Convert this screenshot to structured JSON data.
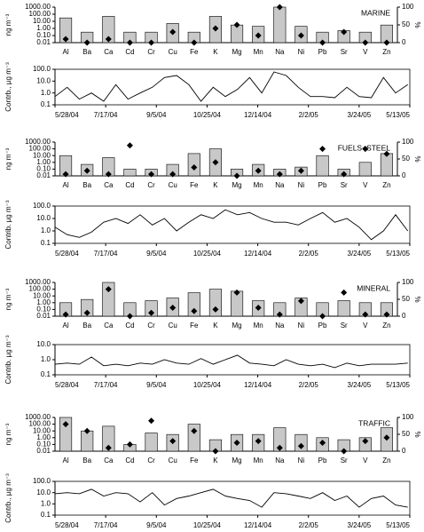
{
  "chart_data": [
    {
      "type": "bar",
      "annotation": "MARINE",
      "ylabel": "ng m⁻³",
      "y2label": "%",
      "categories": [
        "Al",
        "Ba",
        "Ca",
        "Cd",
        "Cr",
        "Cu",
        "Fe",
        "K",
        "Mg",
        "Mn",
        "Na",
        "Ni",
        "Pb",
        "Sr",
        "V",
        "Zn"
      ],
      "ylog": true,
      "ylim": [
        0.01,
        1000
      ],
      "yticks": [
        {
          "value": 0.01,
          "label": "0.01"
        },
        {
          "value": 0.1,
          "label": "0.10"
        },
        {
          "value": 1,
          "label": "1.00"
        },
        {
          "value": 10,
          "label": "10.00"
        },
        {
          "value": 100,
          "label": "100.00"
        },
        {
          "value": 1000,
          "label": "1000.00"
        }
      ],
      "y2lim": [
        0,
        100
      ],
      "y2ticks": [
        0,
        50,
        100
      ],
      "series": [
        {
          "type": "bar",
          "color": "#c8c8c8",
          "values": [
            30,
            0.3,
            50,
            0.3,
            0.3,
            5,
            0.3,
            50,
            3,
            2,
            1000,
            2,
            0.3,
            0.5,
            0.3,
            3
          ]
        },
        {
          "type": "scatter",
          "axis": "y2",
          "color": "#000000",
          "values": [
            10,
            0,
            10,
            0,
            0,
            30,
            0,
            40,
            50,
            20,
            100,
            20,
            0,
            30,
            0,
            0
          ]
        }
      ]
    },
    {
      "type": "line",
      "ylabel": "Contrb., µg m⁻³",
      "x": [
        "5/28/04",
        "6/9/04",
        "6/21/04",
        "7/3/04",
        "7/15/04",
        "7/27/04",
        "8/8/04",
        "8/20/04",
        "9/1/04",
        "9/13/04",
        "9/25/04",
        "10/7/04",
        "10/19/04",
        "10/31/04",
        "11/12/04",
        "11/24/04",
        "12/6/04",
        "12/18/04",
        "12/30/04",
        "1/11/05",
        "1/23/05",
        "2/4/05",
        "2/16/05",
        "2/28/05",
        "3/12/05",
        "3/24/05",
        "4/5/05",
        "4/17/05",
        "4/29/05",
        "5/11/05"
      ],
      "xlim": [
        "5/28/04",
        "5/13/05"
      ],
      "xticks": [
        "5/28/04",
        "7/17/04",
        "9/5/04",
        "10/25/04",
        "12/14/04",
        "2/2/05",
        "3/24/05",
        "5/13/05"
      ],
      "ylog": true,
      "ylim": [
        0.1,
        100
      ],
      "yticks": [
        {
          "value": 0.1,
          "label": "0.1"
        },
        {
          "value": 1,
          "label": "1.0"
        },
        {
          "value": 10,
          "label": "10.0"
        },
        {
          "value": 100,
          "label": "100.0"
        }
      ],
      "color": "#000000",
      "values": [
        0.5,
        3,
        0.3,
        1,
        0.2,
        5,
        0.3,
        1,
        3,
        20,
        30,
        5,
        0.2,
        3,
        0.5,
        2,
        20,
        1,
        60,
        30,
        3,
        0.5,
        0.5,
        0.4,
        3,
        0.5,
        0.4,
        20,
        1,
        5
      ]
    },
    {
      "type": "bar",
      "annotation": "FUELS+STEEL",
      "ylabel": "ng m⁻³",
      "y2label": "%",
      "categories": [
        "Al",
        "Ba",
        "Ca",
        "Cd",
        "Cr",
        "Cu",
        "Fe",
        "K",
        "Mg",
        "Mn",
        "Na",
        "Ni",
        "Pb",
        "Sr",
        "V",
        "Zn"
      ],
      "ylog": true,
      "ylim": [
        0.01,
        1000
      ],
      "yticks": [
        {
          "value": 0.01,
          "label": "0.01"
        },
        {
          "value": 0.1,
          "label": "0.10"
        },
        {
          "value": 1,
          "label": "1.00"
        },
        {
          "value": 10,
          "label": "10.00"
        },
        {
          "value": 100,
          "label": "100.00"
        },
        {
          "value": 1000,
          "label": "1000.00"
        }
      ],
      "y2lim": [
        0,
        100
      ],
      "y2ticks": [
        0,
        50,
        100
      ],
      "series": [
        {
          "type": "bar",
          "color": "#c8c8c8",
          "values": [
            10,
            0.5,
            5,
            0.1,
            0.1,
            0.5,
            20,
            100,
            0.1,
            0.5,
            0.1,
            0.2,
            10,
            0.1,
            1,
            20
          ]
        },
        {
          "type": "scatter",
          "axis": "y2",
          "color": "#000000",
          "values": [
            5,
            15,
            5,
            90,
            5,
            5,
            25,
            40,
            0,
            15,
            5,
            15,
            80,
            5,
            80,
            65
          ]
        }
      ]
    },
    {
      "type": "line",
      "ylabel": "Contrib. µg m⁻³",
      "x": [
        "5/28/04",
        "6/9/04",
        "6/21/04",
        "7/3/04",
        "7/15/04",
        "7/27/04",
        "8/8/04",
        "8/20/04",
        "9/1/04",
        "9/13/04",
        "9/25/04",
        "10/7/04",
        "10/19/04",
        "10/31/04",
        "11/12/04",
        "11/24/04",
        "12/6/04",
        "12/18/04",
        "12/30/04",
        "1/11/05",
        "1/23/05",
        "2/4/05",
        "2/16/05",
        "2/28/05",
        "3/12/05",
        "3/24/05",
        "4/5/05",
        "4/17/05",
        "4/29/05",
        "5/11/05"
      ],
      "xlim": [
        "5/28/04",
        "5/13/05"
      ],
      "xticks": [
        "5/28/04",
        "7/17/04",
        "9/5/04",
        "10/25/04",
        "12/14/04",
        "2/2/05",
        "3/24/05",
        "5/13/05"
      ],
      "ylog": true,
      "ylim": [
        0.1,
        100
      ],
      "yticks": [
        {
          "value": 0.1,
          "label": "0.1"
        },
        {
          "value": 1,
          "label": "1.0"
        },
        {
          "value": 10,
          "label": "10.0"
        },
        {
          "value": 100,
          "label": "100.0"
        }
      ],
      "color": "#000000",
      "values": [
        2,
        0.5,
        0.3,
        0.8,
        5,
        10,
        4,
        20,
        3,
        10,
        1,
        5,
        20,
        10,
        50,
        20,
        30,
        10,
        5,
        5,
        3,
        10,
        30,
        5,
        10,
        2,
        0.2,
        1,
        20,
        1
      ]
    },
    {
      "type": "bar",
      "annotation": "MINERAL",
      "ylabel": "ng m⁻³",
      "y2label": "%",
      "categories": [
        "Al",
        "Ba",
        "Ca",
        "Cd",
        "Cr",
        "Cu",
        "Fe",
        "K",
        "Mg",
        "Mn",
        "Na",
        "Ni",
        "Pb",
        "Sr",
        "V",
        "Zn"
      ],
      "ylog": true,
      "ylim": [
        0.01,
        1000
      ],
      "yticks": [
        {
          "value": 0.01,
          "label": "0.01"
        },
        {
          "value": 0.1,
          "label": "0.10"
        },
        {
          "value": 1,
          "label": "1.00"
        },
        {
          "value": 10,
          "label": "10.00"
        },
        {
          "value": 100,
          "label": "100.00"
        },
        {
          "value": 1000,
          "label": "1000.00"
        }
      ],
      "y2lim": [
        0,
        100
      ],
      "y2ticks": [
        0,
        50,
        100
      ],
      "series": [
        {
          "type": "bar",
          "color": "#c8c8c8",
          "values": [
            1,
            3,
            1000,
            1,
            2,
            5,
            30,
            100,
            50,
            2,
            1,
            5,
            1,
            2,
            1,
            1
          ]
        },
        {
          "type": "scatter",
          "axis": "y2",
          "color": "#000000",
          "values": [
            5,
            10,
            80,
            0,
            10,
            25,
            15,
            20,
            70,
            25,
            5,
            45,
            0,
            70,
            5,
            5
          ]
        }
      ]
    },
    {
      "type": "line",
      "ylabel": "Contrib. µg m⁻³",
      "x": [
        "5/28/04",
        "6/9/04",
        "6/21/04",
        "7/3/04",
        "7/15/04",
        "7/27/04",
        "8/8/04",
        "8/20/04",
        "9/1/04",
        "9/13/04",
        "9/25/04",
        "10/7/04",
        "10/19/04",
        "10/31/04",
        "11/12/04",
        "11/24/04",
        "12/6/04",
        "12/18/04",
        "12/30/04",
        "1/11/05",
        "1/23/05",
        "2/4/05",
        "2/16/05",
        "2/28/05",
        "3/12/05",
        "3/24/05",
        "4/5/05",
        "4/17/05",
        "4/29/05",
        "5/11/05"
      ],
      "xlim": [
        "5/28/04",
        "5/13/05"
      ],
      "xticks": [
        "5/28/04",
        "7/17/04",
        "9/5/04",
        "10/25/04",
        "12/14/04",
        "2/2/05",
        "3/24/05",
        "5/13/05"
      ],
      "ylog": true,
      "ylim": [
        0.1,
        10
      ],
      "yticks": [
        {
          "value": 0.1,
          "label": "0.1"
        },
        {
          "value": 1,
          "label": "1.0"
        },
        {
          "value": 10,
          "label": "10.0"
        }
      ],
      "color": "#000000",
      "values": [
        0.5,
        0.6,
        0.5,
        1.5,
        0.4,
        0.5,
        0.4,
        0.6,
        0.5,
        1,
        0.6,
        0.5,
        1.2,
        0.5,
        1,
        2,
        0.6,
        0.5,
        0.4,
        1,
        0.5,
        0.4,
        0.5,
        0.3,
        0.6,
        0.4,
        0.5,
        0.5,
        0.5,
        0.6
      ]
    },
    {
      "type": "bar",
      "annotation": "TRAFFIC",
      "ylabel": "ng m⁻³",
      "y2label": "%",
      "categories": [
        "Al",
        "Ba",
        "Ca",
        "Cd",
        "Cr",
        "Cu",
        "Fe",
        "K",
        "Mg",
        "Mn",
        "Na",
        "Ni",
        "Pb",
        "Sr",
        "V",
        "Zn"
      ],
      "ylog": true,
      "ylim": [
        0.01,
        1000
      ],
      "yticks": [
        {
          "value": 0.01,
          "label": "0.01"
        },
        {
          "value": 0.1,
          "label": "0.10"
        },
        {
          "value": 1,
          "label": "1.00"
        },
        {
          "value": 10,
          "label": "10.00"
        },
        {
          "value": 100,
          "label": "100.00"
        },
        {
          "value": 1000,
          "label": "1000.00"
        }
      ],
      "y2lim": [
        0,
        100
      ],
      "y2ticks": [
        0,
        50,
        100
      ],
      "series": [
        {
          "type": "bar",
          "color": "#c8c8c8",
          "values": [
            1000,
            10,
            50,
            0.1,
            5,
            3,
            100,
            0.5,
            3,
            3,
            30,
            3,
            1,
            0.5,
            1,
            30
          ]
        },
        {
          "type": "scatter",
          "axis": "y2",
          "color": "#000000",
          "values": [
            80,
            60,
            10,
            20,
            90,
            30,
            60,
            0,
            25,
            30,
            10,
            15,
            25,
            0,
            30,
            40
          ]
        }
      ]
    },
    {
      "type": "line",
      "ylabel": "Contrb., µg m⁻³",
      "x": [
        "5/28/04",
        "6/9/04",
        "6/21/04",
        "7/3/04",
        "7/15/04",
        "7/27/04",
        "8/8/04",
        "8/20/04",
        "9/1/04",
        "9/13/04",
        "9/25/04",
        "10/7/04",
        "10/19/04",
        "10/31/04",
        "11/12/04",
        "11/24/04",
        "12/6/04",
        "12/18/04",
        "12/30/04",
        "1/11/05",
        "1/23/05",
        "2/4/05",
        "2/16/05",
        "2/28/05",
        "3/12/05",
        "3/24/05",
        "4/5/05",
        "4/17/05",
        "4/29/05",
        "5/11/05"
      ],
      "xlim": [
        "5/28/04",
        "5/13/05"
      ],
      "xticks": [
        "5/28/04",
        "7/17/04",
        "9/5/04",
        "10/25/04",
        "12/14/04",
        "2/2/05",
        "3/24/05",
        "5/13/05"
      ],
      "ylog": true,
      "ylim": [
        0.1,
        100
      ],
      "yticks": [
        {
          "value": 0.1,
          "label": "0.1"
        },
        {
          "value": 1,
          "label": "1.0"
        },
        {
          "value": 10,
          "label": "10.0"
        },
        {
          "value": 100,
          "label": "100.0"
        }
      ],
      "color": "#000000",
      "values": [
        8,
        10,
        8,
        20,
        5,
        10,
        8,
        1.5,
        10,
        0.8,
        3,
        5,
        10,
        20,
        5,
        3,
        2,
        0.5,
        10,
        8,
        5,
        3,
        10,
        2,
        5,
        0.5,
        3,
        5,
        0.8,
        0.5
      ]
    }
  ]
}
